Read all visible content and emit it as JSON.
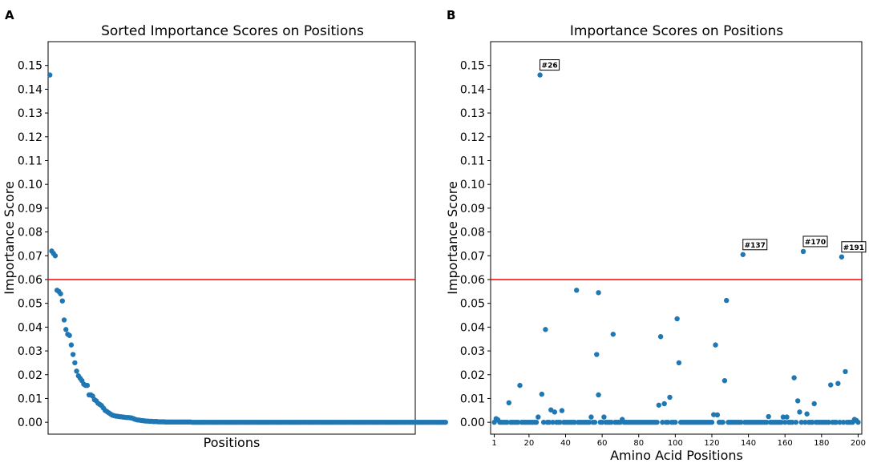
{
  "chart_data": [
    {
      "panel": "A",
      "type": "scatter",
      "title": "Sorted Importance Scores on Positions",
      "xlabel": "Positions",
      "ylabel": "Importance Score",
      "ylim": [
        -0.005,
        0.16
      ],
      "yticks": [
        "0.00",
        "0.01",
        "0.02",
        "0.03",
        "0.04",
        "0.05",
        "0.06",
        "0.07",
        "0.08",
        "0.09",
        "0.10",
        "0.11",
        "0.12",
        "0.13",
        "0.14",
        "0.15"
      ],
      "threshold": 0.06,
      "threshold_color": "#ff0000",
      "point_color": "#1f77b4",
      "xlim": [
        0,
        206
      ],
      "values": [
        0.146,
        0.072,
        0.071,
        0.07,
        0.0555,
        0.055,
        0.054,
        0.051,
        0.043,
        0.039,
        0.037,
        0.0365,
        0.0325,
        0.0285,
        0.025,
        0.0215,
        0.0195,
        0.0185,
        0.0175,
        0.016,
        0.0155,
        0.0155,
        0.0115,
        0.0115,
        0.011,
        0.0095,
        0.009,
        0.008,
        0.0075,
        0.007,
        0.006,
        0.005,
        0.0045,
        0.004,
        0.0035,
        0.003,
        0.0028,
        0.0026,
        0.0025,
        0.0024,
        0.0023,
        0.0022,
        0.0021,
        0.002,
        0.002,
        0.0019,
        0.0018,
        0.0015,
        0.0012,
        0.001,
        0.0009,
        0.0008,
        0.0007,
        0.0006,
        0.0005,
        0.0005,
        0.0004,
        0.0004,
        0.0003,
        0.0003,
        0.0003,
        0.0002,
        0.0002,
        0.0002,
        0.0002,
        0.0001,
        0.0001,
        0.0001,
        0.0001,
        0.0001,
        0.0001,
        0.0001,
        0.0001,
        0.0001,
        0.0001,
        0.0001,
        0.0001,
        0.0001,
        0.0001,
        0.0001,
        0,
        0,
        0,
        0,
        0,
        0,
        0,
        0,
        0,
        0,
        0,
        0,
        0,
        0,
        0,
        0,
        0,
        0,
        0,
        0,
        0,
        0,
        0,
        0,
        0,
        0,
        0,
        0,
        0,
        0,
        0,
        0,
        0,
        0,
        0,
        0,
        0,
        0,
        0,
        0,
        0,
        0,
        0,
        0,
        0,
        0,
        0,
        0,
        0,
        0,
        0,
        0,
        0,
        0,
        0,
        0,
        0,
        0,
        0,
        0,
        0,
        0,
        0,
        0,
        0,
        0,
        0,
        0,
        0,
        0,
        0,
        0,
        0,
        0,
        0,
        0,
        0,
        0,
        0,
        0,
        0,
        0,
        0,
        0,
        0,
        0,
        0,
        0,
        0,
        0,
        0,
        0,
        0,
        0,
        0,
        0,
        0,
        0,
        0,
        0,
        0,
        0,
        0,
        0,
        0,
        0,
        0,
        0,
        0,
        0,
        0,
        0,
        0,
        0,
        0,
        0,
        0,
        0,
        0,
        0,
        0,
        0,
        0,
        0,
        0,
        0,
        0,
        0,
        0,
        0,
        0,
        0,
        0,
        0,
        0,
        0,
        0,
        0,
        0,
        0,
        0,
        0,
        0
      ]
    },
    {
      "panel": "B",
      "type": "scatter",
      "title": "Importance Scores on Positions",
      "xlabel": "Amino Acid Positions",
      "ylabel": "Importance Score",
      "ylim": [
        -0.005,
        0.16
      ],
      "xlim": [
        -1,
        202
      ],
      "yticks": [
        "0.00",
        "0.01",
        "0.02",
        "0.03",
        "0.04",
        "0.05",
        "0.06",
        "0.07",
        "0.08",
        "0.09",
        "0.10",
        "0.11",
        "0.12",
        "0.13",
        "0.14",
        "0.15"
      ],
      "xticks": [
        1,
        20,
        40,
        60,
        80,
        100,
        120,
        140,
        160,
        180,
        200
      ],
      "threshold": 0.06,
      "threshold_color": "#ff0000",
      "point_color": "#1f77b4",
      "points": [
        [
          26,
          0.146
        ],
        [
          137,
          0.0705
        ],
        [
          170,
          0.0718
        ],
        [
          191,
          0.0695
        ],
        [
          46,
          0.0555
        ],
        [
          58,
          0.0545
        ],
        [
          128,
          0.0512
        ],
        [
          101,
          0.0435
        ],
        [
          29,
          0.039
        ],
        [
          66,
          0.037
        ],
        [
          92,
          0.036
        ],
        [
          57,
          0.0285
        ],
        [
          122,
          0.0325
        ],
        [
          102,
          0.025
        ],
        [
          193,
          0.0213
        ],
        [
          165,
          0.0187
        ],
        [
          127,
          0.0175
        ],
        [
          15,
          0.0155
        ],
        [
          185,
          0.0157
        ],
        [
          189,
          0.0163
        ],
        [
          27,
          0.0118
        ],
        [
          58,
          0.0115
        ],
        [
          97,
          0.0105
        ],
        [
          9,
          0.0082
        ],
        [
          91,
          0.0072
        ],
        [
          94,
          0.0078
        ],
        [
          176,
          0.0078
        ],
        [
          167,
          0.009
        ],
        [
          32,
          0.0052
        ],
        [
          34,
          0.0043
        ],
        [
          38,
          0.0049
        ],
        [
          168,
          0.0043
        ],
        [
          172,
          0.0035
        ],
        [
          121,
          0.0032
        ],
        [
          123,
          0.0031
        ],
        [
          151,
          0.0024
        ],
        [
          159,
          0.0022
        ],
        [
          161,
          0.0022
        ],
        [
          25,
          0.0022
        ],
        [
          54,
          0.0022
        ],
        [
          61,
          0.0022
        ],
        [
          71,
          0.0012
        ],
        [
          3,
          0.001
        ],
        [
          2,
          0.0015
        ],
        [
          198,
          0.0012
        ],
        [
          199,
          0.0008
        ],
        [
          1,
          0
        ],
        [
          4,
          0
        ],
        [
          5,
          0
        ],
        [
          6,
          0
        ],
        [
          7,
          0
        ],
        [
          8,
          0
        ],
        [
          10,
          0
        ],
        [
          11,
          0
        ],
        [
          12,
          0
        ],
        [
          13,
          0
        ],
        [
          14,
          0
        ],
        [
          16,
          0
        ],
        [
          17,
          0
        ],
        [
          18,
          0
        ],
        [
          19,
          0
        ],
        [
          20,
          0
        ],
        [
          21,
          0
        ],
        [
          22,
          0
        ],
        [
          23,
          0
        ],
        [
          24,
          0
        ],
        [
          28,
          0
        ],
        [
          30,
          0
        ],
        [
          31,
          0
        ],
        [
          33,
          0
        ],
        [
          35,
          0
        ],
        [
          36,
          0
        ],
        [
          37,
          0
        ],
        [
          39,
          0
        ],
        [
          40,
          0
        ],
        [
          41,
          0
        ],
        [
          42,
          0
        ],
        [
          43,
          0
        ],
        [
          44,
          0
        ],
        [
          45,
          0
        ],
        [
          47,
          0
        ],
        [
          48,
          0
        ],
        [
          49,
          0
        ],
        [
          50,
          0
        ],
        [
          51,
          0
        ],
        [
          52,
          0
        ],
        [
          53,
          0
        ],
        [
          55,
          0
        ],
        [
          56,
          0
        ],
        [
          59,
          0
        ],
        [
          60,
          0
        ],
        [
          62,
          0
        ],
        [
          63,
          0
        ],
        [
          64,
          0
        ],
        [
          65,
          0
        ],
        [
          67,
          0
        ],
        [
          68,
          0
        ],
        [
          69,
          0
        ],
        [
          70,
          0
        ],
        [
          72,
          0
        ],
        [
          73,
          0
        ],
        [
          74,
          0
        ],
        [
          75,
          0
        ],
        [
          76,
          0
        ],
        [
          77,
          0
        ],
        [
          78,
          0
        ],
        [
          79,
          0
        ],
        [
          80,
          0
        ],
        [
          81,
          0
        ],
        [
          82,
          0
        ],
        [
          83,
          0
        ],
        [
          84,
          0
        ],
        [
          85,
          0
        ],
        [
          86,
          0
        ],
        [
          87,
          0
        ],
        [
          88,
          0
        ],
        [
          89,
          0
        ],
        [
          90,
          0
        ],
        [
          93,
          0
        ],
        [
          95,
          0
        ],
        [
          96,
          0
        ],
        [
          98,
          0
        ],
        [
          99,
          0
        ],
        [
          100,
          0
        ],
        [
          103,
          0
        ],
        [
          104,
          0
        ],
        [
          105,
          0
        ],
        [
          106,
          0
        ],
        [
          107,
          0
        ],
        [
          108,
          0
        ],
        [
          109,
          0
        ],
        [
          110,
          0
        ],
        [
          111,
          0
        ],
        [
          112,
          0
        ],
        [
          113,
          0
        ],
        [
          114,
          0
        ],
        [
          115,
          0
        ],
        [
          116,
          0
        ],
        [
          117,
          0
        ],
        [
          118,
          0
        ],
        [
          119,
          0
        ],
        [
          120,
          0
        ],
        [
          124,
          0
        ],
        [
          125,
          0
        ],
        [
          126,
          0
        ],
        [
          129,
          0
        ],
        [
          130,
          0
        ],
        [
          131,
          0
        ],
        [
          132,
          0
        ],
        [
          133,
          0
        ],
        [
          134,
          0
        ],
        [
          135,
          0
        ],
        [
          136,
          0
        ],
        [
          138,
          0
        ],
        [
          139,
          0
        ],
        [
          140,
          0
        ],
        [
          141,
          0
        ],
        [
          142,
          0
        ],
        [
          143,
          0
        ],
        [
          144,
          0
        ],
        [
          145,
          0
        ],
        [
          146,
          0
        ],
        [
          147,
          0
        ],
        [
          148,
          0
        ],
        [
          149,
          0
        ],
        [
          150,
          0
        ],
        [
          152,
          0
        ],
        [
          153,
          0
        ],
        [
          154,
          0
        ],
        [
          155,
          0
        ],
        [
          156,
          0
        ],
        [
          157,
          0
        ],
        [
          158,
          0
        ],
        [
          160,
          0
        ],
        [
          162,
          0
        ],
        [
          163,
          0
        ],
        [
          164,
          0
        ],
        [
          166,
          0
        ],
        [
          169,
          0
        ],
        [
          171,
          0
        ],
        [
          173,
          0
        ],
        [
          174,
          0
        ],
        [
          175,
          0
        ],
        [
          177,
          0
        ],
        [
          178,
          0
        ],
        [
          179,
          0
        ],
        [
          180,
          0
        ],
        [
          181,
          0
        ],
        [
          182,
          0
        ],
        [
          183,
          0
        ],
        [
          184,
          0
        ],
        [
          186,
          0
        ],
        [
          187,
          0
        ],
        [
          188,
          0
        ],
        [
          190,
          0
        ],
        [
          192,
          0
        ],
        [
          194,
          0
        ],
        [
          195,
          0
        ],
        [
          196,
          0
        ],
        [
          197,
          0
        ],
        [
          200,
          0
        ]
      ],
      "annotations": [
        {
          "label": "#26",
          "x": 26,
          "y": 0.146
        },
        {
          "label": "#137",
          "x": 137,
          "y": 0.0705
        },
        {
          "label": "#170",
          "x": 170,
          "y": 0.0718
        },
        {
          "label": "#191",
          "x": 191,
          "y": 0.0695
        }
      ]
    }
  ]
}
